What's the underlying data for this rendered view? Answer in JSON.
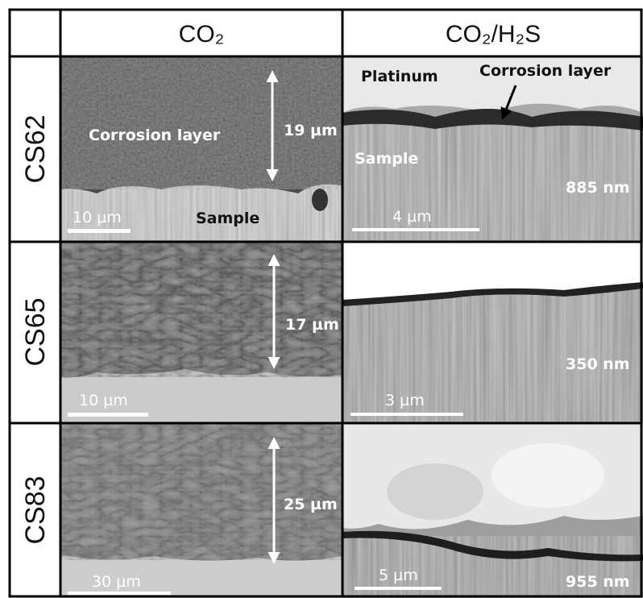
{
  "header": {
    "columns": [
      "CO₂",
      "CO₂/H₂S"
    ]
  },
  "rows": [
    {
      "label": "CS62",
      "co2": {
        "layer_label": "Corrosion layer",
        "thickness": "19 µm",
        "sample_label": "Sample",
        "scale_bar": "10 µm"
      },
      "h2s": {
        "platinum_label": "Platinum",
        "layer_label": "Corrosion layer",
        "sample_label": "Sample",
        "thickness": "885 nm",
        "scale_bar": "4 µm"
      }
    },
    {
      "label": "CS65",
      "co2": {
        "thickness": "17 µm",
        "scale_bar": "10 µm"
      },
      "h2s": {
        "thickness": "350 nm",
        "scale_bar": "3 µm"
      }
    },
    {
      "label": "CS83",
      "co2": {
        "thickness": "25 µm",
        "scale_bar": "30 µm"
      },
      "h2s": {
        "thickness": "955 nm",
        "scale_bar": "5 µm"
      }
    }
  ]
}
